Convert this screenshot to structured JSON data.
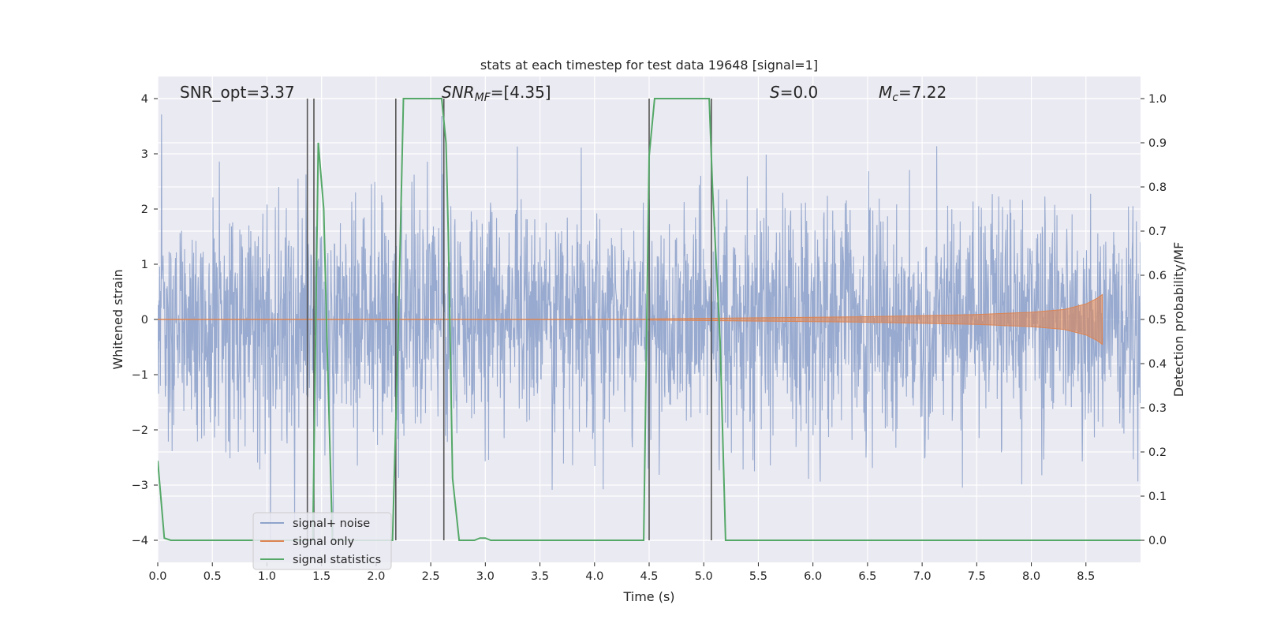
{
  "chart_data": {
    "type": "line",
    "title": "stats at each timestep for test data 19648 [signal=1]",
    "xlabel": "Time (s)",
    "ylabel": "Whitened strain",
    "y2label": "Detection probability/MF",
    "xlim": [
      0.0,
      9.0
    ],
    "ylim": [
      -4.4,
      4.4
    ],
    "y2lim": [
      -0.05,
      1.05
    ],
    "xticks": [
      0.0,
      0.5,
      1.0,
      1.5,
      2.0,
      2.5,
      3.0,
      3.5,
      4.0,
      4.5,
      5.0,
      5.5,
      6.0,
      6.5,
      7.0,
      7.5,
      8.0,
      8.5
    ],
    "xtick_labels": [
      "0.0",
      "0.5",
      "1.0",
      "1.5",
      "2.0",
      "2.5",
      "3.0",
      "3.5",
      "4.0",
      "4.5",
      "5.0",
      "5.5",
      "6.0",
      "6.5",
      "7.0",
      "7.5",
      "8.0",
      "8.5"
    ],
    "yticks": [
      4,
      3,
      2,
      1,
      0,
      -1,
      -2,
      -3,
      -4
    ],
    "ytick_labels": [
      "4",
      "3",
      "2",
      "1",
      "0",
      "−1",
      "−2",
      "−3",
      "−4"
    ],
    "y2ticks": [
      1.0,
      0.9,
      0.8,
      0.7,
      0.6,
      0.5,
      0.4,
      0.3,
      0.2,
      0.1,
      0.0
    ],
    "y2tick_labels": [
      "1.0",
      "0.9",
      "0.8",
      "0.7",
      "0.6",
      "0.5",
      "0.4",
      "0.3",
      "0.2",
      "0.1",
      "0.0"
    ],
    "grid": true,
    "legend_position": "lower-left",
    "annotations": {
      "snr_opt": "SNR_opt=3.37",
      "snr_mf_main": "SNR",
      "snr_mf_sub": "MF",
      "snr_mf_value": "=[4.35]",
      "s_main": "S",
      "s_value": "=0.0",
      "mc_main": "M",
      "mc_sub": "c",
      "mc_value": "=7.22"
    },
    "series": [
      {
        "name": "signal+ noise",
        "color": "#8fa3cb",
        "axis": "left",
        "description_of_shape": "whitened noise, amplitude mostly within ±2, peaks near ±4",
        "t_range": [
          0.0,
          9.0
        ],
        "amplitude_typical": 1.0,
        "amplitude_peak": 4.0
      },
      {
        "name": "signal only",
        "color": "#dd8452",
        "axis": "left",
        "envelope": {
          "t": [
            4.5,
            5.0,
            5.5,
            6.0,
            6.5,
            7.0,
            7.5,
            8.0,
            8.3,
            8.5,
            8.6,
            8.65
          ],
          "amp": [
            0.01,
            0.02,
            0.03,
            0.04,
            0.05,
            0.07,
            0.09,
            0.13,
            0.18,
            0.28,
            0.38,
            0.45
          ]
        }
      },
      {
        "name": "signal statistics",
        "color": "#55a868",
        "axis": "right",
        "x": [
          0.0,
          0.06,
          0.12,
          1.38,
          1.42,
          1.47,
          1.52,
          1.55,
          1.6,
          2.15,
          2.2,
          2.25,
          2.6,
          2.64,
          2.66,
          2.7,
          2.76,
          2.9,
          2.95,
          3.0,
          3.05,
          4.0,
          4.1,
          4.45,
          4.5,
          4.55,
          5.05,
          5.08,
          5.15,
          5.2,
          9.0
        ],
        "y": [
          0.18,
          0.005,
          0.0,
          0.0,
          0.0,
          0.9,
          0.75,
          0.45,
          0.0,
          0.0,
          0.45,
          1.0,
          1.0,
          0.9,
          0.7,
          0.14,
          0.0,
          0.0,
          0.005,
          0.005,
          0.0,
          0.0,
          0.0,
          0.0,
          0.87,
          1.0,
          1.0,
          0.8,
          0.45,
          0.0,
          0.0
        ]
      }
    ],
    "vertical_lines": {
      "color": "#555555",
      "x": [
        1.37,
        1.43,
        2.18,
        2.62,
        4.5,
        5.07
      ]
    }
  }
}
